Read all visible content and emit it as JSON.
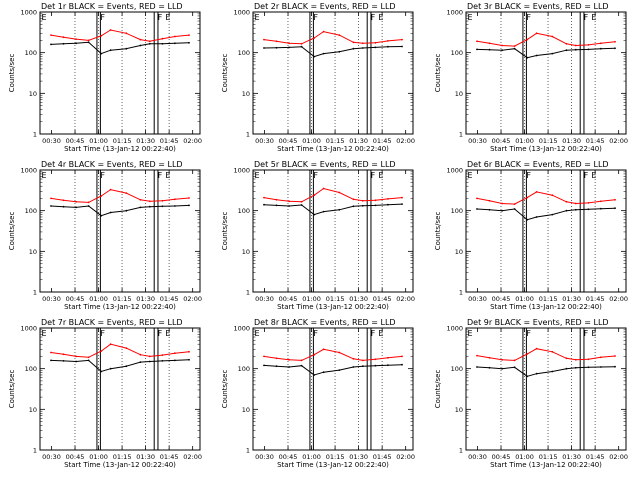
{
  "figure": {
    "xlabel": "Start Time (13-Jan-12 00:22:40)",
    "ylabel": "Counts/sec",
    "x_ticks": [
      "00:30",
      "00:45",
      "01:00",
      "01:15",
      "01:30",
      "01:45",
      "02:00"
    ],
    "y_ticks": [
      "1",
      "10",
      "100",
      "1000"
    ],
    "marker_e": "E",
    "marker_f": "F"
  },
  "colors": {
    "events": "#000000",
    "lld": "#ff0000",
    "axes": "#000000"
  },
  "chart_data": [
    {
      "type": "line",
      "title": "Det 1r BLACK = Events, RED = LLD",
      "xlabel": "Start Time (13-Jan-12 00:22:40)",
      "ylabel": "Counts/sec",
      "yscale": "log",
      "ylim": [
        1,
        1000
      ],
      "xlim_minutes": [
        0,
        102
      ],
      "x_minutes": [
        7,
        15,
        23,
        31,
        39,
        45,
        55,
        64,
        70,
        78,
        86,
        95
      ],
      "series": [
        {
          "name": "LLD",
          "color": "red",
          "values": [
            270,
            240,
            215,
            200,
            260,
            360,
            300,
            210,
            190,
            220,
            250,
            270
          ]
        },
        {
          "name": "Events",
          "color": "black",
          "values": [
            160,
            165,
            170,
            180,
            95,
            115,
            125,
            150,
            165,
            165,
            170,
            175
          ]
        }
      ],
      "annotations": [
        {
          "label": "E",
          "x_minutes": 0
        },
        {
          "label": "F",
          "x_minutes": 37.5
        },
        {
          "label": "F",
          "x_minutes": 74
        },
        {
          "label": "E",
          "x_minutes": 79
        }
      ],
      "gaps_minutes": [
        [
          36.3,
          38.5
        ],
        [
          72.8,
          75.2
        ]
      ],
      "dotted_x_minutes": [
        22.3,
        37.3,
        52.3,
        67.3,
        82.3
      ]
    },
    {
      "type": "line",
      "title": "Det 2r BLACK = Events, RED = LLD",
      "xlabel": "Start Time (13-Jan-12 00:22:40)",
      "ylabel": "Counts/sec",
      "yscale": "log",
      "ylim": [
        1,
        1000
      ],
      "xlim_minutes": [
        0,
        102
      ],
      "x_minutes": [
        7,
        15,
        23,
        31,
        39,
        45,
        55,
        64,
        70,
        78,
        86,
        95
      ],
      "series": [
        {
          "name": "LLD",
          "color": "red",
          "values": [
            210,
            190,
            170,
            165,
            230,
            330,
            270,
            180,
            170,
            175,
            195,
            210
          ]
        },
        {
          "name": "Events",
          "color": "black",
          "values": [
            130,
            132,
            135,
            140,
            80,
            95,
            105,
            125,
            130,
            135,
            140,
            142
          ]
        }
      ],
      "annotations": [
        {
          "label": "E",
          "x_minutes": 0
        },
        {
          "label": "F",
          "x_minutes": 37.5
        },
        {
          "label": "F",
          "x_minutes": 74
        },
        {
          "label": "E",
          "x_minutes": 79
        }
      ],
      "gaps_minutes": [
        [
          36.3,
          38.5
        ],
        [
          72.8,
          75.2
        ]
      ],
      "dotted_x_minutes": [
        22.3,
        37.3,
        52.3,
        67.3,
        82.3
      ]
    },
    {
      "type": "line",
      "title": "Det 3r BLACK = Events, RED = LLD",
      "xlabel": "Start Time (13-Jan-12 00:22:40)",
      "ylabel": "Counts/sec",
      "yscale": "log",
      "ylim": [
        1,
        1000
      ],
      "xlim_minutes": [
        0,
        102
      ],
      "x_minutes": [
        7,
        15,
        23,
        31,
        39,
        45,
        55,
        64,
        70,
        78,
        86,
        95
      ],
      "series": [
        {
          "name": "LLD",
          "color": "red",
          "values": [
            190,
            170,
            150,
            145,
            210,
            300,
            250,
            165,
            150,
            155,
            170,
            185
          ]
        },
        {
          "name": "Events",
          "color": "black",
          "values": [
            120,
            118,
            115,
            125,
            75,
            85,
            95,
            115,
            118,
            120,
            125,
            128
          ]
        }
      ],
      "annotations": [
        {
          "label": "E",
          "x_minutes": 0
        },
        {
          "label": "F",
          "x_minutes": 37.5
        },
        {
          "label": "F",
          "x_minutes": 74
        },
        {
          "label": "E",
          "x_minutes": 79
        }
      ],
      "gaps_minutes": [
        [
          36.3,
          38.5
        ],
        [
          72.8,
          75.2
        ]
      ],
      "dotted_x_minutes": [
        22.3,
        37.3,
        52.3,
        67.3,
        82.3
      ]
    },
    {
      "type": "line",
      "title": "Det 4r BLACK = Events, RED = LLD",
      "xlabel": "Start Time (13-Jan-12 00:22:40)",
      "ylabel": "Counts/sec",
      "yscale": "log",
      "ylim": [
        1,
        1000
      ],
      "xlim_minutes": [
        0,
        102
      ],
      "x_minutes": [
        7,
        15,
        23,
        31,
        39,
        45,
        55,
        64,
        70,
        78,
        86,
        95
      ],
      "series": [
        {
          "name": "LLD",
          "color": "red",
          "values": [
            200,
            180,
            165,
            160,
            230,
            330,
            270,
            185,
            170,
            175,
            190,
            205
          ]
        },
        {
          "name": "Events",
          "color": "black",
          "values": [
            130,
            125,
            120,
            130,
            75,
            90,
            100,
            120,
            125,
            128,
            130,
            135
          ]
        }
      ],
      "annotations": [
        {
          "label": "E",
          "x_minutes": 0
        },
        {
          "label": "F",
          "x_minutes": 37.5
        },
        {
          "label": "F",
          "x_minutes": 74
        },
        {
          "label": "E",
          "x_minutes": 79
        }
      ],
      "gaps_minutes": [
        [
          36.3,
          38.5
        ],
        [
          72.8,
          75.2
        ]
      ],
      "dotted_x_minutes": [
        22.3,
        37.3,
        52.3,
        67.3,
        82.3
      ]
    },
    {
      "type": "line",
      "title": "Det 5r BLACK = Events, RED = LLD",
      "xlabel": "Start Time (13-Jan-12 00:22:40)",
      "ylabel": "Counts/sec",
      "yscale": "log",
      "ylim": [
        1,
        1000
      ],
      "xlim_minutes": [
        0,
        102
      ],
      "x_minutes": [
        7,
        15,
        23,
        31,
        39,
        45,
        55,
        64,
        70,
        78,
        86,
        95
      ],
      "series": [
        {
          "name": "LLD",
          "color": "red",
          "values": [
            210,
            185,
            170,
            165,
            240,
            350,
            280,
            190,
            175,
            180,
            195,
            210
          ]
        },
        {
          "name": "Events",
          "color": "black",
          "values": [
            140,
            135,
            130,
            138,
            80,
            95,
            105,
            128,
            132,
            135,
            140,
            145
          ]
        }
      ],
      "annotations": [
        {
          "label": "E",
          "x_minutes": 0
        },
        {
          "label": "F",
          "x_minutes": 37.5
        },
        {
          "label": "F",
          "x_minutes": 74
        },
        {
          "label": "E",
          "x_minutes": 79
        }
      ],
      "gaps_minutes": [
        [
          36.3,
          38.5
        ],
        [
          72.8,
          75.2
        ]
      ],
      "dotted_x_minutes": [
        22.3,
        37.3,
        52.3,
        67.3,
        82.3
      ]
    },
    {
      "type": "line",
      "title": "Det 6r BLACK = Events, RED = LLD",
      "xlabel": "Start Time (13-Jan-12 00:22:40)",
      "ylabel": "Counts/sec",
      "yscale": "log",
      "ylim": [
        1,
        1000
      ],
      "xlim_minutes": [
        0,
        102
      ],
      "x_minutes": [
        7,
        15,
        23,
        31,
        39,
        45,
        55,
        64,
        70,
        78,
        86,
        95
      ],
      "series": [
        {
          "name": "LLD",
          "color": "red",
          "values": [
            200,
            175,
            150,
            145,
            210,
            290,
            240,
            165,
            150,
            155,
            170,
            185
          ]
        },
        {
          "name": "Events",
          "color": "black",
          "values": [
            110,
            105,
            100,
            110,
            60,
            70,
            80,
            100,
            105,
            108,
            112,
            115
          ]
        }
      ],
      "annotations": [
        {
          "label": "E",
          "x_minutes": 0
        },
        {
          "label": "F",
          "x_minutes": 37.5
        },
        {
          "label": "F",
          "x_minutes": 74
        },
        {
          "label": "E",
          "x_minutes": 79
        }
      ],
      "gaps_minutes": [
        [
          36.3,
          38.5
        ],
        [
          72.8,
          75.2
        ]
      ],
      "dotted_x_minutes": [
        22.3,
        37.3,
        52.3,
        67.3,
        82.3
      ]
    },
    {
      "type": "line",
      "title": "Det 7r BLACK = Events, RED = LLD",
      "xlabel": "Start Time (13-Jan-12 00:22:40)",
      "ylabel": "Counts/sec",
      "yscale": "log",
      "ylim": [
        1,
        1000
      ],
      "xlim_minutes": [
        0,
        102
      ],
      "x_minutes": [
        7,
        15,
        23,
        31,
        39,
        45,
        55,
        64,
        70,
        78,
        86,
        95
      ],
      "series": [
        {
          "name": "LLD",
          "color": "red",
          "values": [
            250,
            225,
            200,
            190,
            270,
            400,
            320,
            220,
            200,
            215,
            240,
            260
          ]
        },
        {
          "name": "Events",
          "color": "black",
          "values": [
            160,
            155,
            150,
            160,
            85,
            100,
            115,
            145,
            150,
            155,
            160,
            165
          ]
        }
      ],
      "annotations": [
        {
          "label": "E",
          "x_minutes": 0
        },
        {
          "label": "F",
          "x_minutes": 37.5
        },
        {
          "label": "F",
          "x_minutes": 74
        },
        {
          "label": "E",
          "x_minutes": 79
        }
      ],
      "gaps_minutes": [
        [
          36.3,
          38.5
        ],
        [
          72.8,
          75.2
        ]
      ],
      "dotted_x_minutes": [
        22.3,
        37.3,
        52.3,
        67.3,
        82.3
      ]
    },
    {
      "type": "line",
      "title": "Det 8r BLACK = Events, RED = LLD",
      "xlabel": "Start Time (13-Jan-12 00:22:40)",
      "ylabel": "Counts/sec",
      "yscale": "log",
      "ylim": [
        1,
        1000
      ],
      "xlim_minutes": [
        0,
        102
      ],
      "x_minutes": [
        7,
        15,
        23,
        31,
        39,
        45,
        55,
        64,
        70,
        78,
        86,
        95
      ],
      "series": [
        {
          "name": "LLD",
          "color": "red",
          "values": [
            200,
            180,
            165,
            160,
            220,
            300,
            250,
            175,
            160,
            170,
            185,
            200
          ]
        },
        {
          "name": "Events",
          "color": "black",
          "values": [
            120,
            115,
            110,
            118,
            70,
            82,
            92,
            110,
            115,
            118,
            122,
            125
          ]
        }
      ],
      "annotations": [
        {
          "label": "E",
          "x_minutes": 0
        },
        {
          "label": "F",
          "x_minutes": 37.5
        },
        {
          "label": "F",
          "x_minutes": 74
        },
        {
          "label": "E",
          "x_minutes": 79
        }
      ],
      "gaps_minutes": [
        [
          36.3,
          38.5
        ],
        [
          72.8,
          75.2
        ]
      ],
      "dotted_x_minutes": [
        22.3,
        37.3,
        52.3,
        67.3,
        82.3
      ]
    },
    {
      "type": "line",
      "title": "Det 9r BLACK = Events, RED = LLD",
      "xlabel": "Start Time (13-Jan-12 00:22:40)",
      "ylabel": "Counts/sec",
      "yscale": "log",
      "ylim": [
        1,
        1000
      ],
      "xlim_minutes": [
        0,
        102
      ],
      "x_minutes": [
        7,
        15,
        23,
        31,
        39,
        45,
        55,
        64,
        70,
        78,
        86,
        95
      ],
      "series": [
        {
          "name": "LLD",
          "color": "red",
          "values": [
            210,
            185,
            165,
            160,
            230,
            310,
            260,
            180,
            165,
            170,
            190,
            205
          ]
        },
        {
          "name": "Events",
          "color": "black",
          "values": [
            110,
            105,
            100,
            108,
            65,
            75,
            85,
            100,
            105,
            108,
            110,
            112
          ]
        }
      ],
      "annotations": [
        {
          "label": "E",
          "x_minutes": 0
        },
        {
          "label": "F",
          "x_minutes": 37.5
        },
        {
          "label": "F",
          "x_minutes": 74
        },
        {
          "label": "E",
          "x_minutes": 79
        }
      ],
      "gaps_minutes": [
        [
          36.3,
          38.5
        ],
        [
          72.8,
          75.2
        ]
      ],
      "dotted_x_minutes": [
        22.3,
        37.3,
        52.3,
        67.3,
        82.3
      ]
    }
  ]
}
